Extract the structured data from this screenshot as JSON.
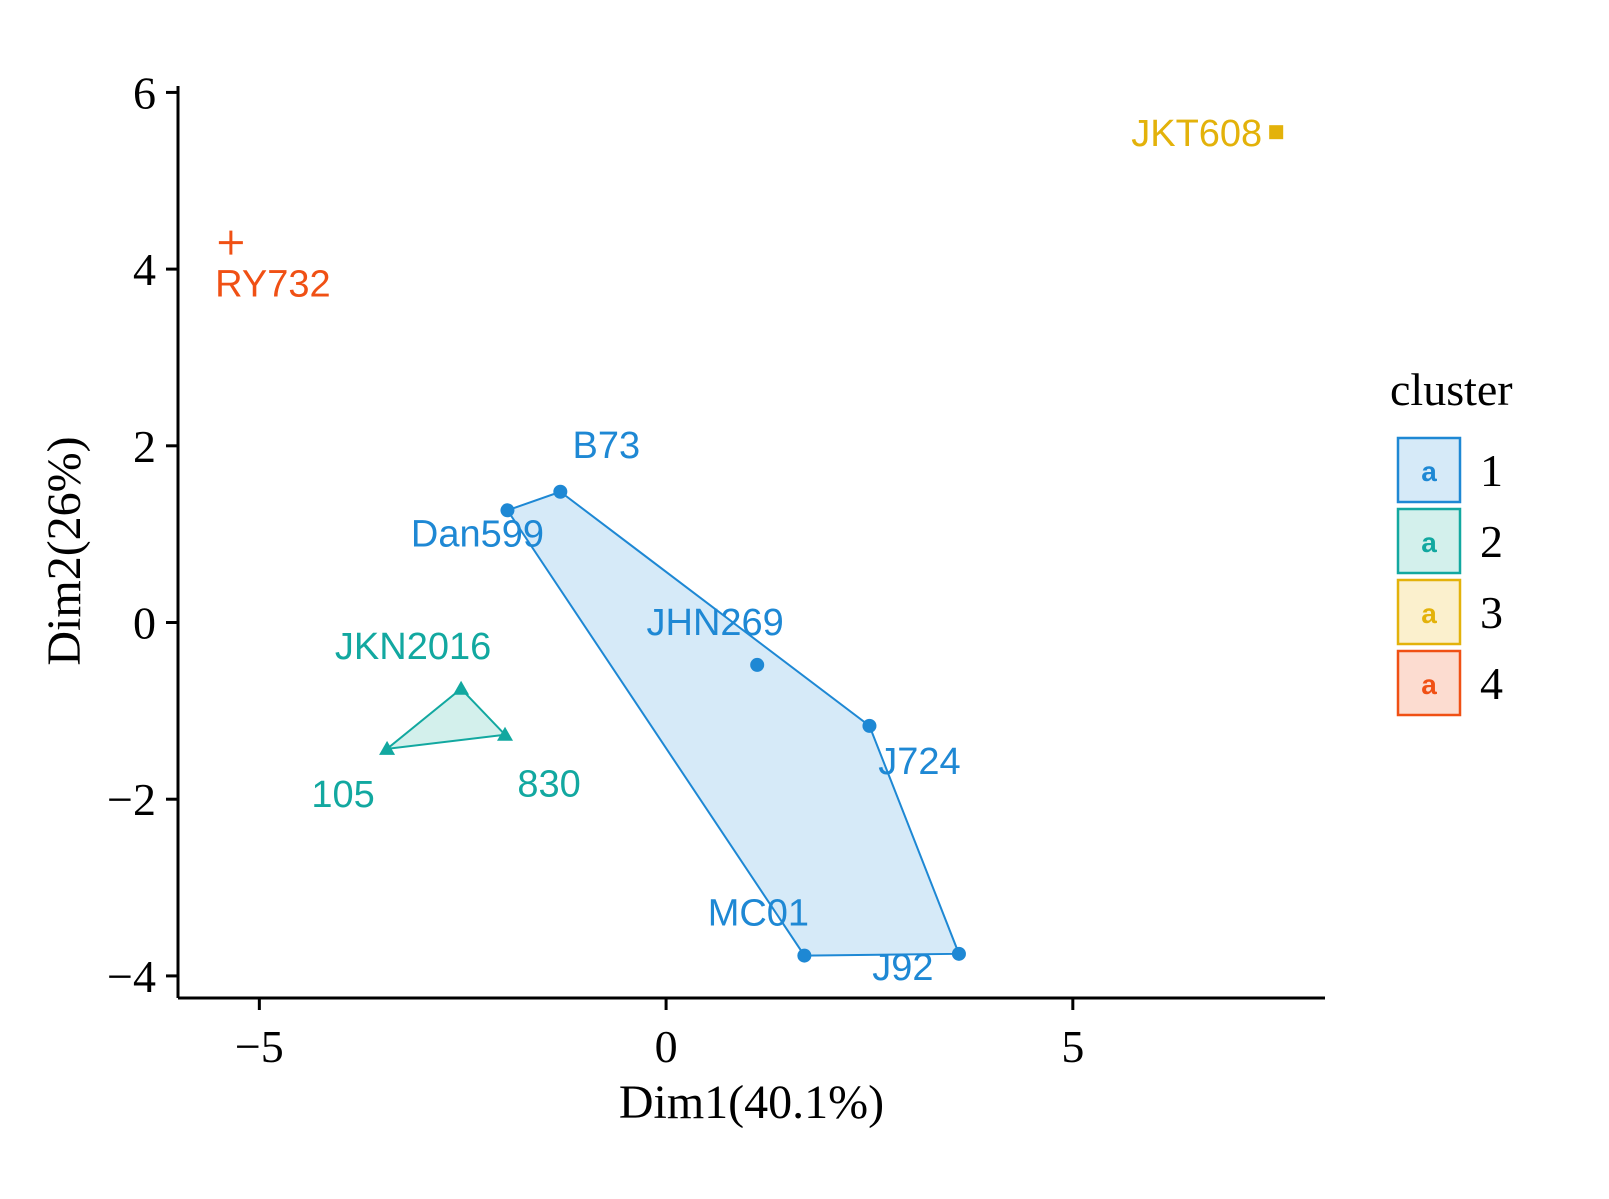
{
  "chart_data": {
    "type": "scatter",
    "xlabel": "Dim1(40.1%)",
    "ylabel": "Dim2(26%)",
    "xlim": [
      -6,
      8.1
    ],
    "ylim": [
      -4.25,
      6.05
    ],
    "x_ticks": [
      -5,
      0,
      5
    ],
    "x_tick_labels": [
      "−5",
      "0",
      "5"
    ],
    "y_ticks": [
      -4,
      -2,
      0,
      2,
      4,
      6
    ],
    "y_tick_labels": [
      "−4",
      "−2",
      "0",
      "2",
      "4",
      "6"
    ],
    "grid": false,
    "legend": {
      "title": "cluster",
      "placement": "right",
      "entries": [
        {
          "label": "1",
          "color": "#1E88D4",
          "fill": "#D6EAF8",
          "glyph": "a"
        },
        {
          "label": "2",
          "color": "#12A8A0",
          "fill": "#D3F0EC",
          "glyph": "a"
        },
        {
          "label": "3",
          "color": "#E3B20A",
          "fill": "#FBF0CD",
          "glyph": "a"
        },
        {
          "label": "4",
          "color": "#F05014",
          "fill": "#FCDCD0",
          "glyph": "a"
        }
      ]
    },
    "series": [
      {
        "name": "1",
        "marker": "circle",
        "color": "#1E88D4",
        "hull_fill": "#D6EAF8",
        "points": [
          {
            "label": "B73",
            "x": -1.3,
            "y": 1.48
          },
          {
            "label": "Dan599",
            "x": -1.95,
            "y": 1.27
          },
          {
            "label": "JHN269",
            "x": 1.12,
            "y": -0.48
          },
          {
            "label": "J724",
            "x": 2.5,
            "y": -1.17
          },
          {
            "label": "MC01",
            "x": 1.7,
            "y": -3.77
          },
          {
            "label": "J92",
            "x": 3.6,
            "y": -3.75
          }
        ],
        "hull": [
          "B73",
          "J724",
          "J92",
          "MC01",
          "Dan599"
        ]
      },
      {
        "name": "2",
        "marker": "triangle",
        "color": "#12A8A0",
        "hull_fill": "#D3F0EC",
        "points": [
          {
            "label": "JKN2016",
            "x": -2.52,
            "y": -0.75
          },
          {
            "label": "830",
            "x": -1.98,
            "y": -1.27
          },
          {
            "label": "105",
            "x": -3.43,
            "y": -1.43
          }
        ],
        "hull": [
          "JKN2016",
          "830",
          "105"
        ]
      },
      {
        "name": "3",
        "marker": "square",
        "color": "#E3B20A",
        "points": [
          {
            "label": "JKT608",
            "x": 7.5,
            "y": 5.55
          }
        ]
      },
      {
        "name": "4",
        "marker": "cross",
        "color": "#F05014",
        "points": [
          {
            "label": "RY732",
            "x": -5.35,
            "y": 4.3
          }
        ]
      }
    ]
  }
}
